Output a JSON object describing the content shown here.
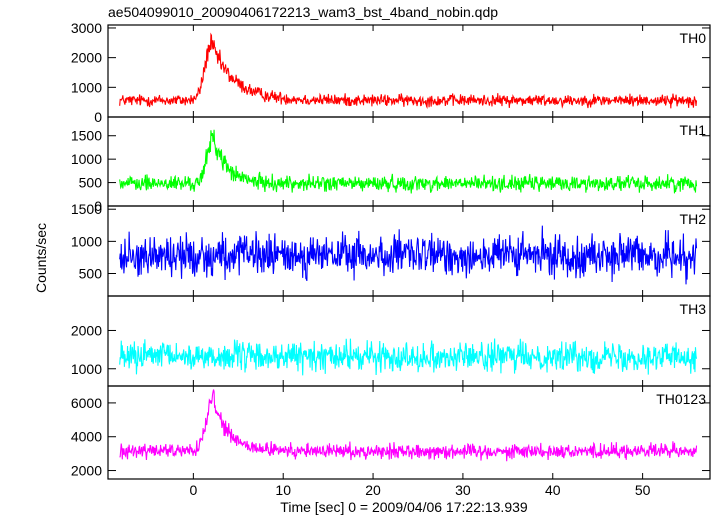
{
  "chart_data": {
    "type": "line",
    "title": "ae504099010_20090406172213_wam3_bst_4band_nobin.qdp",
    "xlabel": "Time [sec] 0 = 2009/04/06 17:22:13.939",
    "ylabel": "Counts/sec",
    "xlim": [
      -9.5,
      57.5
    ],
    "x_ticks": [
      0,
      10,
      20,
      30,
      40,
      50
    ],
    "x_tick_labels": [
      "0",
      "10",
      "20",
      "30",
      "40",
      "50"
    ],
    "x_start": -8.2,
    "x_end": 56.0,
    "panels": [
      {
        "name": "TH0",
        "color": "#ff0000",
        "ylim": [
          0,
          3100
        ],
        "y_ticks": [
          0,
          1000,
          2000,
          3000
        ],
        "y_tick_labels": [
          "0",
          "1000",
          "2000",
          "3000"
        ],
        "baseline": 560,
        "noise": 300,
        "burst": {
          "peak_time": 2.0,
          "peak_extra": 1900,
          "rise": 1.0,
          "decay": 2.5
        }
      },
      {
        "name": "TH1",
        "color": "#00ff00",
        "ylim": [
          0,
          1900
        ],
        "y_ticks": [
          0,
          500,
          1000,
          1500
        ],
        "y_tick_labels": [
          "0",
          "500",
          "1000",
          "1500"
        ],
        "baseline": 480,
        "noise": 250,
        "burst": {
          "peak_time": 2.2,
          "peak_extra": 1000,
          "rise": 0.9,
          "decay": 1.5
        }
      },
      {
        "name": "TH2",
        "color": "#0000ff",
        "ylim": [
          150,
          1550
        ],
        "y_ticks": [
          500,
          1000,
          1500
        ],
        "y_tick_labels": [
          "500",
          "1000",
          "1500"
        ],
        "baseline": 780,
        "noise": 480,
        "burst": {
          "peak_time": 2.0,
          "peak_extra": 0,
          "rise": 1.0,
          "decay": 1.0
        }
      },
      {
        "name": "TH3",
        "color": "#00ffff",
        "ylim": [
          550,
          2900
        ],
        "y_ticks": [
          1000,
          2000
        ],
        "y_tick_labels": [
          "1000",
          "2000"
        ],
        "baseline": 1320,
        "noise": 560,
        "burst": {
          "peak_time": 2.0,
          "peak_extra": 0,
          "rise": 1.0,
          "decay": 1.0
        }
      },
      {
        "name": "TH0123",
        "color": "#ff00ff",
        "ylim": [
          1500,
          7000
        ],
        "y_ticks": [
          2000,
          4000,
          6000
        ],
        "y_tick_labels": [
          "2000",
          "4000",
          "6000"
        ],
        "baseline": 3150,
        "noise": 650,
        "burst": {
          "peak_time": 2.2,
          "peak_extra": 3100,
          "rise": 1.0,
          "decay": 1.6
        }
      }
    ]
  }
}
